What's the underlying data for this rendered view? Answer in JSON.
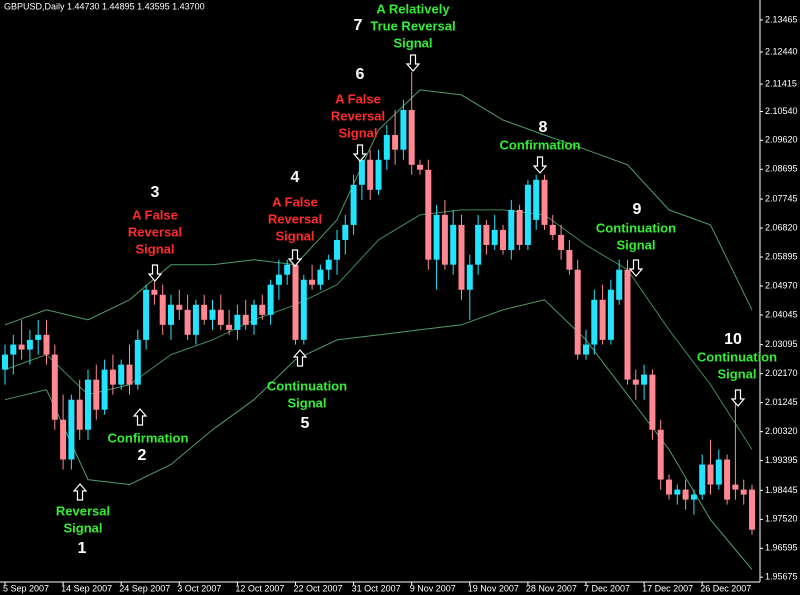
{
  "chart_data": {
    "type": "candlestick",
    "header": "GBPUSD,Daily  1.44730 1.44895 1.43595 1.43700",
    "categories": [
      "5 Sep 2007",
      null,
      null,
      null,
      null,
      null,
      null,
      "14 Sep 2007",
      null,
      null,
      null,
      null,
      null,
      null,
      "24 Sep 2007",
      null,
      null,
      null,
      null,
      null,
      null,
      "3 Oct 2007",
      null,
      null,
      null,
      null,
      null,
      null,
      "12 Oct 2007",
      null,
      null,
      null,
      null,
      null,
      null,
      "22 Oct 2007",
      null,
      null,
      null,
      null,
      null,
      null,
      "31 Oct 2007",
      null,
      null,
      null,
      null,
      null,
      null,
      "9 Nov 2007",
      null,
      null,
      null,
      null,
      null,
      null,
      "19 Nov 2007",
      null,
      null,
      null,
      null,
      null,
      null,
      "28 Nov 2007",
      null,
      null,
      null,
      null,
      null,
      null,
      "7 Dec 2007",
      null,
      null,
      null,
      null,
      null,
      null,
      "17 Dec 2007",
      null,
      null,
      null,
      null,
      null,
      null,
      "26 Dec 2007",
      null,
      null,
      null,
      null,
      null,
      null
    ],
    "open": [
      2.023,
      2.0278,
      2.031,
      2.0294,
      2.0325,
      2.0341,
      2.0278,
      2.007,
      1.9943,
      2.0134,
      2.0038,
      2.0198,
      2.0102,
      2.023,
      2.0182,
      2.0246,
      2.0182,
      2.0325,
      2.0485,
      2.0469,
      2.0373,
      2.0437,
      2.0421,
      2.0341,
      2.0437,
      2.0389,
      2.0421,
      2.0373,
      2.0357,
      2.0405,
      2.0373,
      2.0437,
      2.0405,
      2.0501,
      2.0533,
      2.0565,
      2.0325,
      2.0517,
      2.0501,
      2.0549,
      2.0581,
      2.0644,
      2.0692,
      2.082,
      2.09,
      2.0804,
      2.09,
      2.0979,
      2.0932,
      2.1059,
      2.0884,
      2.0868,
      2.0581,
      2.0724,
      2.0565,
      2.0692,
      2.0485,
      2.0565,
      2.0692,
      2.0628,
      2.0676,
      2.0612,
      2.074,
      2.0628,
      2.0708,
      2.0836,
      2.0692,
      2.066,
      2.0612,
      2.0549,
      2.0278,
      2.031,
      2.0453,
      2.0325,
      2.0453,
      2.0549,
      2.0198,
      2.0182,
      2.0214,
      2.0038,
      1.9879,
      1.9831,
      1.9847,
      1.9815,
      1.9831,
      1.9927,
      1.9863,
      1.9943,
      1.9863,
      1.9847,
      1.9847
    ],
    "high": [
      2.031,
      2.0341,
      2.0389,
      2.0357,
      2.0389,
      2.0389,
      2.031,
      2.015,
      2.015,
      2.0198,
      2.023,
      2.0246,
      2.0262,
      2.0278,
      2.0262,
      2.031,
      2.0357,
      2.0501,
      2.0517,
      2.0501,
      2.0469,
      2.0485,
      2.0469,
      2.0453,
      2.0469,
      2.0453,
      2.0469,
      2.0421,
      2.0437,
      2.0453,
      2.0453,
      2.0469,
      2.0517,
      2.0581,
      2.0581,
      2.0612,
      2.0533,
      2.0565,
      2.0565,
      2.0597,
      2.0676,
      2.0724,
      2.0852,
      2.0932,
      2.0932,
      2.0932,
      2.1011,
      2.1059,
      2.1091,
      2.118,
      2.09,
      2.09,
      2.0756,
      2.0772,
      2.074,
      2.0724,
      2.0597,
      2.0724,
      2.0708,
      2.0724,
      2.0692,
      2.0772,
      2.0756,
      2.0836,
      2.0852,
      2.0852,
      2.0724,
      2.0692,
      2.0644,
      2.0581,
      2.0357,
      2.0485,
      2.0501,
      2.0517,
      2.0581,
      2.0581,
      2.023,
      2.0246,
      2.023,
      2.007,
      1.9895,
      1.9863,
      1.9879,
      1.9847,
      1.9959,
      2.0006,
      1.9975,
      1.9959,
      2.015,
      1.9879,
      1.9863
    ],
    "low": [
      2.0182,
      2.0214,
      2.0262,
      2.0246,
      2.0278,
      2.0246,
      2.0038,
      1.9911,
      1.9911,
      2.0006,
      2.0006,
      2.007,
      2.0086,
      2.015,
      2.0166,
      2.015,
      2.0166,
      2.0294,
      2.0437,
      2.0341,
      2.0325,
      2.0389,
      2.0325,
      2.031,
      2.0373,
      2.0357,
      2.0357,
      2.0341,
      2.0325,
      2.0357,
      2.0341,
      2.0389,
      2.0373,
      2.0453,
      2.0501,
      2.031,
      2.031,
      2.0485,
      2.0485,
      2.0517,
      2.0533,
      2.0597,
      2.066,
      2.0772,
      2.0772,
      2.0788,
      2.0868,
      2.0884,
      2.09,
      2.0852,
      2.0852,
      2.0549,
      2.0485,
      2.0549,
      2.0533,
      2.0453,
      2.0389,
      2.0533,
      2.0597,
      2.0612,
      2.0597,
      2.0581,
      2.0612,
      2.0612,
      2.0676,
      2.0676,
      2.0644,
      2.0581,
      2.0533,
      2.0262,
      2.0262,
      2.0278,
      2.031,
      2.031,
      2.0437,
      2.0182,
      2.0134,
      2.0134,
      2.0006,
      1.9847,
      1.9815,
      1.9799,
      1.9783,
      1.9767,
      1.9815,
      1.9831,
      1.9847,
      1.9799,
      1.9815,
      1.9799,
      1.9703
    ],
    "close": [
      2.0278,
      2.031,
      2.0294,
      2.0325,
      2.0341,
      2.0278,
      2.007,
      1.9943,
      2.0134,
      2.0038,
      2.0198,
      2.0102,
      2.023,
      2.0182,
      2.0246,
      2.0182,
      2.0325,
      2.0485,
      2.0469,
      2.0373,
      2.0437,
      2.0421,
      2.0341,
      2.0437,
      2.0389,
      2.0421,
      2.0373,
      2.0357,
      2.0405,
      2.0373,
      2.0437,
      2.0405,
      2.0501,
      2.0533,
      2.0565,
      2.0325,
      2.0517,
      2.0501,
      2.0549,
      2.0581,
      2.0644,
      2.0692,
      2.082,
      2.09,
      2.0804,
      2.09,
      2.0979,
      2.0932,
      2.1059,
      2.0884,
      2.0868,
      2.0581,
      2.0724,
      2.0565,
      2.0692,
      2.0485,
      2.0565,
      2.0692,
      2.0628,
      2.0676,
      2.0612,
      2.074,
      2.0628,
      2.082,
      2.0836,
      2.0692,
      2.066,
      2.0612,
      2.0549,
      2.0278,
      2.031,
      2.0453,
      2.0325,
      2.0485,
      2.0549,
      2.0198,
      2.0182,
      2.0214,
      2.0038,
      1.9879,
      1.9831,
      1.9847,
      1.9815,
      1.9831,
      1.9927,
      1.9863,
      1.9943,
      1.9815,
      1.9847,
      1.9831,
      1.9719
    ],
    "up_color": "#22e4ff",
    "down_color": "#ff8893",
    "bands": [
      {
        "color": "#4f9d68",
        "x": [
          0,
          5,
          10,
          15,
          20,
          25,
          30,
          35,
          40,
          45,
          50,
          55,
          60,
          65,
          70,
          75,
          80,
          85,
          90
        ],
        "values": [
          2.0373,
          2.0421,
          2.0389,
          2.0453,
          2.0565,
          2.0565,
          2.0581,
          2.0565,
          2.0708,
          2.0995,
          2.1123,
          2.1107,
          2.1027,
          2.0979,
          2.0932,
          2.0884,
          2.074,
          2.0692,
          2.0421
        ]
      },
      {
        "color": "#3f8a58",
        "x": [
          0,
          5,
          10,
          15,
          20,
          25,
          30,
          35,
          40,
          45,
          50,
          55,
          60,
          65,
          70,
          75,
          80,
          85,
          90
        ],
        "values": [
          2.023,
          2.0278,
          2.015,
          2.0182,
          2.0278,
          2.0325,
          2.0389,
          2.0437,
          2.0501,
          2.0644,
          2.0724,
          2.074,
          2.074,
          2.0724,
          2.0628,
          2.0549,
          2.0357,
          2.0182,
          1.9975
        ]
      },
      {
        "color": "#4f9d68",
        "x": [
          0,
          5,
          10,
          15,
          20,
          25,
          30,
          35,
          40,
          45,
          50,
          55,
          60,
          65,
          70,
          75,
          80,
          85,
          90
        ],
        "values": [
          2.0134,
          2.0166,
          1.9879,
          1.9863,
          1.9927,
          2.0038,
          2.0134,
          2.0262,
          2.0325,
          2.0341,
          2.0357,
          2.0373,
          2.0421,
          2.0453,
          2.0325,
          2.015,
          1.9975,
          1.9751,
          1.9592
        ]
      }
    ],
    "ylim": [
      1.9552,
      2.141
    ],
    "yticks": [
      2.13465,
      {
        "value": 2.1244,
        "label": "2.12440"
      },
      2.11415,
      {
        "value": 2.1054,
        "label": "2.10540"
      },
      {
        "value": 2.0962,
        "label": "2.09620"
      },
      2.08695,
      2.07745,
      {
        "value": 2.0682,
        "label": "2.06820"
      },
      2.05895,
      {
        "value": 2.0497,
        "label": "2.04970"
      },
      2.04045,
      2.03095,
      {
        "value": 2.0217,
        "label": "2.02170"
      },
      2.01245,
      {
        "value": 2.0032,
        "label": "2.00320"
      },
      1.99395,
      1.98445,
      {
        "value": 1.9752,
        "label": "1.97520"
      },
      1.96595,
      1.95675
    ],
    "annotations": [
      {
        "number": 1,
        "lines": [
          "Reversal",
          "Signal"
        ],
        "color": "#33ee33"
      },
      {
        "number": 2,
        "lines": [
          "Confirmation"
        ],
        "color": "#33ee33"
      },
      {
        "number": 3,
        "lines": [
          "A False",
          "Reversal",
          "Signal"
        ],
        "color": "#ff2b2b"
      },
      {
        "number": 4,
        "lines": [
          "A False",
          "Reversal",
          "Signal"
        ],
        "color": "#ff2b2b"
      },
      {
        "number": 5,
        "lines": [
          "Continuation",
          "Signal"
        ],
        "color": "#33ee33"
      },
      {
        "number": 6,
        "lines": [
          "A False",
          "Reversal",
          "Signal"
        ],
        "color": "#ff2b2b"
      },
      {
        "number": 7,
        "lines": [
          "A Relatively",
          "True Reversal",
          "Signal"
        ],
        "color": "#33ee33"
      },
      {
        "number": 8,
        "lines": [
          "Confirmation"
        ],
        "color": "#33ee33"
      },
      {
        "number": 9,
        "lines": [
          "Continuation",
          "Signal"
        ],
        "color": "#33ee33"
      },
      {
        "number": 10,
        "lines": [
          "Continuation",
          "Signal"
        ],
        "color": "#33ee33"
      }
    ]
  }
}
